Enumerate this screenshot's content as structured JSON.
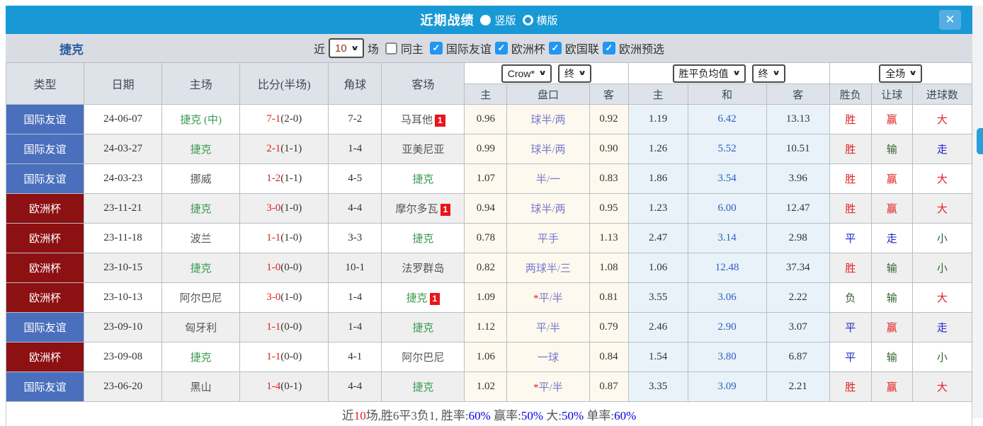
{
  "icons": {
    "close": "✕",
    "caret": "∨",
    "check": "✓"
  },
  "header": {
    "title": "近期战绩",
    "layout_options": [
      {
        "label": "竖版",
        "selected": true
      },
      {
        "label": "横版",
        "selected": false
      }
    ]
  },
  "filter": {
    "team": "捷克",
    "recent_label": "近",
    "recent_value": "10",
    "games_label": "场",
    "same_home_label": "同主",
    "leagues": [
      {
        "label": "国际友谊",
        "checked": true
      },
      {
        "label": "欧洲杯",
        "checked": true
      },
      {
        "label": "欧国联",
        "checked": true
      },
      {
        "label": "欧洲预选",
        "checked": true
      }
    ]
  },
  "table": {
    "static_headers": [
      "类型",
      "日期",
      "主场",
      "比分(半场)",
      "角球",
      "客场"
    ],
    "dropdowns": {
      "company": "Crow*",
      "period1": "终",
      "average": "胜平负均值",
      "period2": "终",
      "scope": "全场"
    },
    "sub_headers": [
      "主",
      "盘口",
      "客",
      "主",
      "和",
      "客",
      "胜负",
      "让球",
      "进球数"
    ],
    "rows": [
      {
        "type": "国际友谊",
        "type_style": "friendly",
        "date": "24-06-07",
        "home": {
          "name": "捷克 (中)",
          "czech": true,
          "badge": ""
        },
        "score": "7-1",
        "half": "(2-0)",
        "corner": "7-2",
        "away": {
          "name": "马耳他",
          "czech": false,
          "badge": "1"
        },
        "ah": {
          "home": "0.96",
          "line": "球半/两",
          "star": false,
          "away": "0.92"
        },
        "odds": {
          "home": "1.19",
          "draw": "6.42",
          "away": "13.13"
        },
        "results": [
          {
            "t": "胜",
            "c": "r"
          },
          {
            "t": "赢",
            "c": "r"
          },
          {
            "t": "大",
            "c": "r"
          }
        ]
      },
      {
        "type": "国际友谊",
        "type_style": "friendly",
        "date": "24-03-27",
        "home": {
          "name": "捷克",
          "czech": true,
          "badge": ""
        },
        "score": "2-1",
        "half": "(1-1)",
        "corner": "1-4",
        "away": {
          "name": "亚美尼亚",
          "czech": false,
          "badge": ""
        },
        "ah": {
          "home": "0.99",
          "line": "球半/两",
          "star": false,
          "away": "0.90"
        },
        "odds": {
          "home": "1.26",
          "draw": "5.52",
          "away": "10.51"
        },
        "results": [
          {
            "t": "胜",
            "c": "r"
          },
          {
            "t": "输",
            "c": "g"
          },
          {
            "t": "走",
            "c": "b"
          }
        ]
      },
      {
        "type": "国际友谊",
        "type_style": "friendly",
        "date": "24-03-23",
        "home": {
          "name": "挪威",
          "czech": false,
          "badge": ""
        },
        "score": "1-2",
        "half": "(1-1)",
        "corner": "4-5",
        "away": {
          "name": "捷克",
          "czech": true,
          "badge": ""
        },
        "ah": {
          "home": "1.07",
          "line": "半/一",
          "star": false,
          "away": "0.83"
        },
        "odds": {
          "home": "1.86",
          "draw": "3.54",
          "away": "3.96"
        },
        "results": [
          {
            "t": "胜",
            "c": "r"
          },
          {
            "t": "赢",
            "c": "r"
          },
          {
            "t": "大",
            "c": "r"
          }
        ]
      },
      {
        "type": "欧洲杯",
        "type_style": "euro",
        "date": "23-11-21",
        "home": {
          "name": "捷克",
          "czech": true,
          "badge": ""
        },
        "score": "3-0",
        "half": "(1-0)",
        "corner": "4-4",
        "away": {
          "name": "摩尔多瓦",
          "czech": false,
          "badge": "1"
        },
        "ah": {
          "home": "0.94",
          "line": "球半/两",
          "star": false,
          "away": "0.95"
        },
        "odds": {
          "home": "1.23",
          "draw": "6.00",
          "away": "12.47"
        },
        "results": [
          {
            "t": "胜",
            "c": "r"
          },
          {
            "t": "赢",
            "c": "r"
          },
          {
            "t": "大",
            "c": "r"
          }
        ]
      },
      {
        "type": "欧洲杯",
        "type_style": "euro",
        "date": "23-11-18",
        "home": {
          "name": "波兰",
          "czech": false,
          "badge": ""
        },
        "score": "1-1",
        "half": "(1-0)",
        "corner": "3-3",
        "away": {
          "name": "捷克",
          "czech": true,
          "badge": ""
        },
        "ah": {
          "home": "0.78",
          "line": "平手",
          "star": false,
          "away": "1.13"
        },
        "odds": {
          "home": "2.47",
          "draw": "3.14",
          "away": "2.98"
        },
        "results": [
          {
            "t": "平",
            "c": "b"
          },
          {
            "t": "走",
            "c": "b"
          },
          {
            "t": "小",
            "c": "g"
          }
        ]
      },
      {
        "type": "欧洲杯",
        "type_style": "euro",
        "date": "23-10-15",
        "home": {
          "name": "捷克",
          "czech": true,
          "badge": ""
        },
        "score": "1-0",
        "half": "(0-0)",
        "corner": "10-1",
        "away": {
          "name": "法罗群岛",
          "czech": false,
          "badge": ""
        },
        "ah": {
          "home": "0.82",
          "line": "两球半/三",
          "star": false,
          "away": "1.08"
        },
        "odds": {
          "home": "1.06",
          "draw": "12.48",
          "away": "37.34"
        },
        "results": [
          {
            "t": "胜",
            "c": "r"
          },
          {
            "t": "输",
            "c": "g"
          },
          {
            "t": "小",
            "c": "g"
          }
        ]
      },
      {
        "type": "欧洲杯",
        "type_style": "euro",
        "date": "23-10-13",
        "home": {
          "name": "阿尔巴尼",
          "czech": false,
          "badge": ""
        },
        "score": "3-0",
        "half": "(1-0)",
        "corner": "1-4",
        "away": {
          "name": "捷克",
          "czech": true,
          "badge": "1"
        },
        "ah": {
          "home": "1.09",
          "line": "平/半",
          "star": true,
          "away": "0.81"
        },
        "odds": {
          "home": "3.55",
          "draw": "3.06",
          "away": "2.22"
        },
        "results": [
          {
            "t": "负",
            "c": "g"
          },
          {
            "t": "输",
            "c": "g"
          },
          {
            "t": "大",
            "c": "r"
          }
        ]
      },
      {
        "type": "国际友谊",
        "type_style": "friendly",
        "date": "23-09-10",
        "home": {
          "name": "匈牙利",
          "czech": false,
          "badge": ""
        },
        "score": "1-1",
        "half": "(0-0)",
        "corner": "1-4",
        "away": {
          "name": "捷克",
          "czech": true,
          "badge": ""
        },
        "ah": {
          "home": "1.12",
          "line": "平/半",
          "star": false,
          "away": "0.79"
        },
        "odds": {
          "home": "2.46",
          "draw": "2.90",
          "away": "3.07"
        },
        "results": [
          {
            "t": "平",
            "c": "b"
          },
          {
            "t": "赢",
            "c": "r"
          },
          {
            "t": "走",
            "c": "b"
          }
        ]
      },
      {
        "type": "欧洲杯",
        "type_style": "euro",
        "date": "23-09-08",
        "home": {
          "name": "捷克",
          "czech": true,
          "badge": ""
        },
        "score": "1-1",
        "half": "(0-0)",
        "corner": "4-1",
        "away": {
          "name": "阿尔巴尼",
          "czech": false,
          "badge": ""
        },
        "ah": {
          "home": "1.06",
          "line": "一球",
          "star": false,
          "away": "0.84"
        },
        "odds": {
          "home": "1.54",
          "draw": "3.80",
          "away": "6.87"
        },
        "results": [
          {
            "t": "平",
            "c": "b"
          },
          {
            "t": "输",
            "c": "g"
          },
          {
            "t": "小",
            "c": "g"
          }
        ]
      },
      {
        "type": "国际友谊",
        "type_style": "friendly",
        "date": "23-06-20",
        "home": {
          "name": "黑山",
          "czech": false,
          "badge": ""
        },
        "score": "1-4",
        "half": "(0-1)",
        "corner": "4-4",
        "away": {
          "name": "捷克",
          "czech": true,
          "badge": ""
        },
        "ah": {
          "home": "1.02",
          "line": "平/半",
          "star": true,
          "away": "0.87"
        },
        "odds": {
          "home": "3.35",
          "draw": "3.09",
          "away": "2.21"
        },
        "results": [
          {
            "t": "胜",
            "c": "r"
          },
          {
            "t": "赢",
            "c": "r"
          },
          {
            "t": "大",
            "c": "r"
          }
        ]
      }
    ]
  },
  "summary": {
    "segments": [
      {
        "t": "近",
        "c": "d"
      },
      {
        "t": "10",
        "c": "r"
      },
      {
        "t": "场,胜6平3负1, 胜率:",
        "c": "d"
      },
      {
        "t": "60%",
        "c": "b"
      },
      {
        "t": " 赢率:",
        "c": "d"
      },
      {
        "t": "50%",
        "c": "b"
      },
      {
        "t": " 大:",
        "c": "d"
      },
      {
        "t": "50%",
        "c": "b"
      },
      {
        "t": " 单率:",
        "c": "d"
      },
      {
        "t": "60%",
        "c": "b"
      }
    ]
  },
  "colors": {
    "accent": "#1899d6",
    "type_blue": "#4a6fbd",
    "type_red": "#8d1013",
    "czech_green": "#3c9b53",
    "score_red": "#e02020",
    "draw_blue": "#2b5fc0",
    "handicap_purple": "#7878cc",
    "check_blue": "#2196f3"
  }
}
